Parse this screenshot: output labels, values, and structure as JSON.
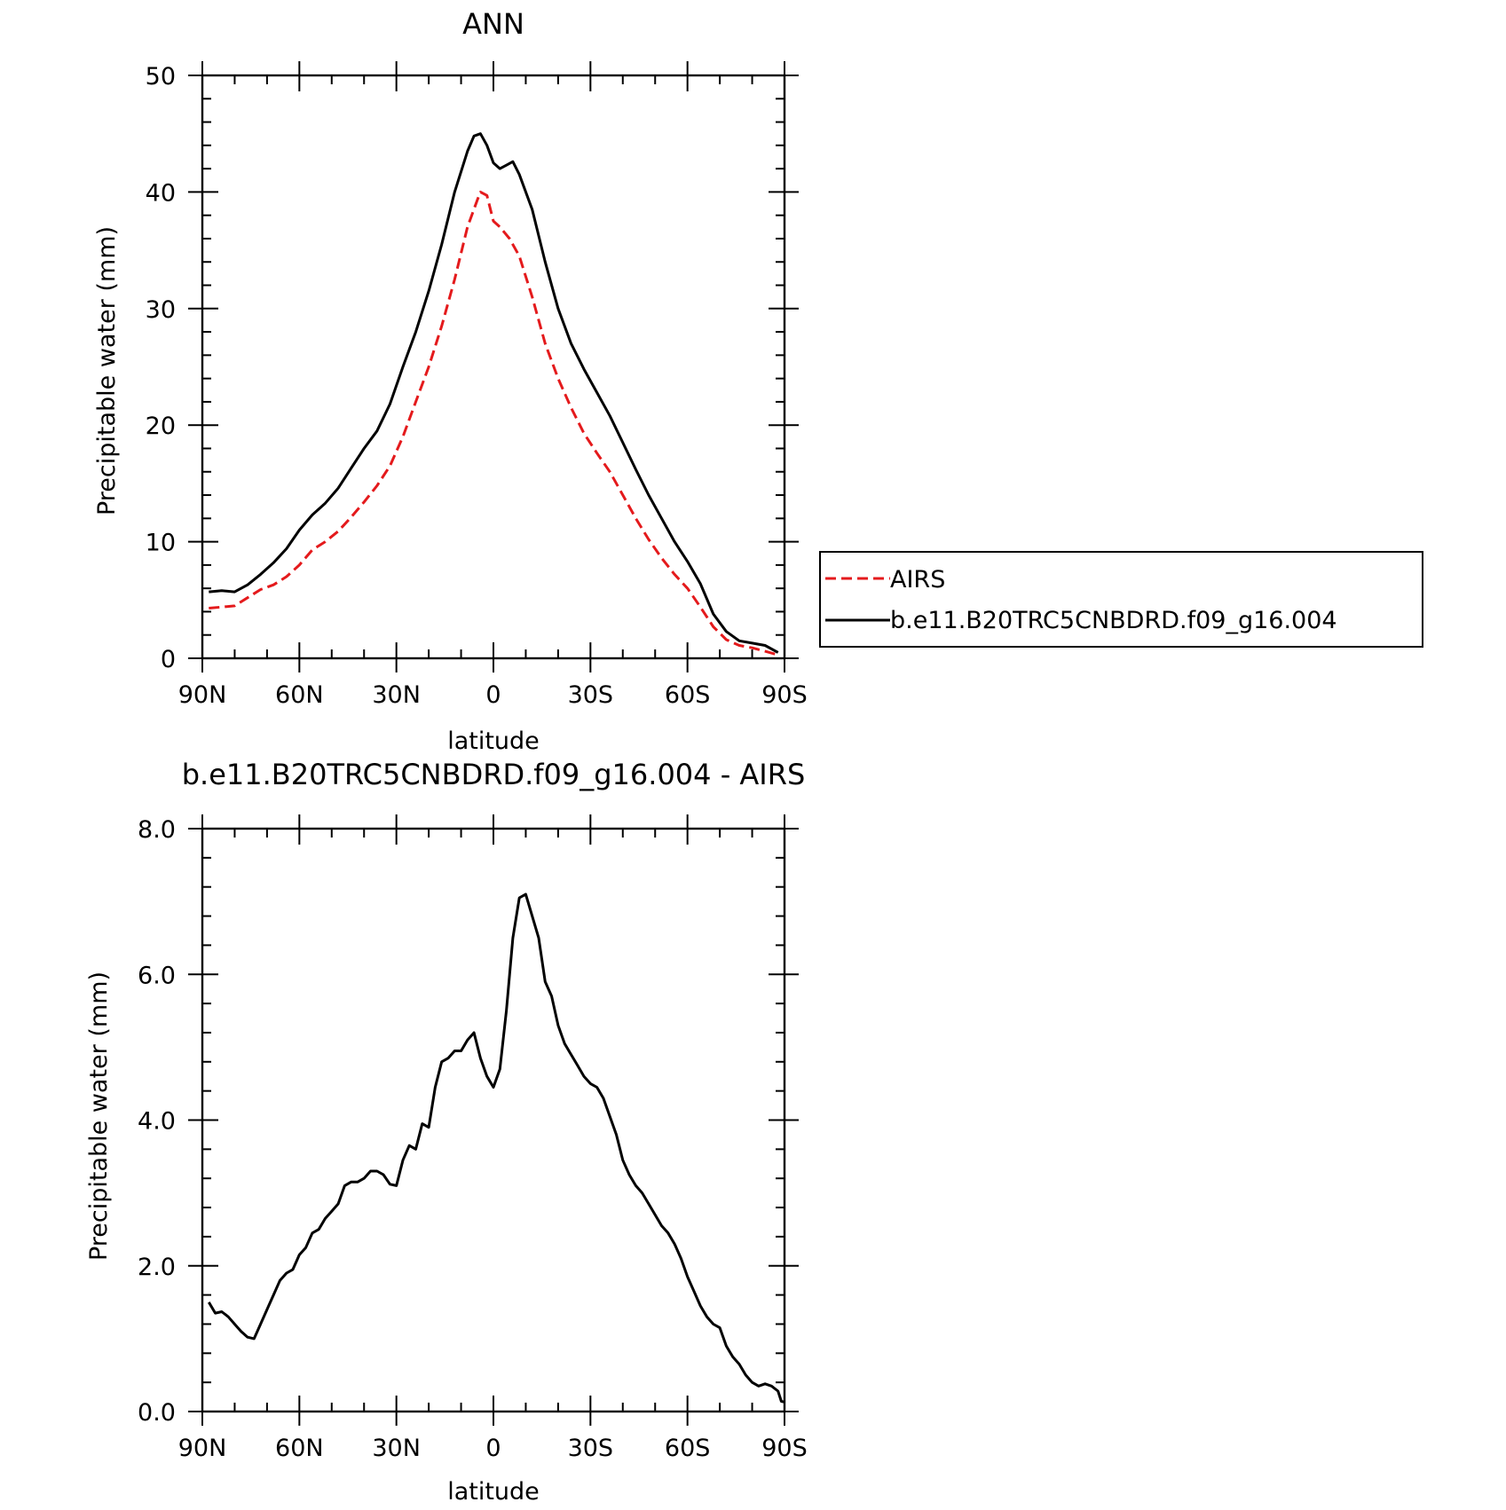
{
  "chart_data": [
    {
      "type": "line",
      "title": "ANN",
      "xlabel": "latitude",
      "ylabel": "Precipitable water (mm)",
      "xlim": [
        90,
        -90
      ],
      "ylim": [
        0,
        50
      ],
      "x_ticks": [
        90,
        60,
        30,
        0,
        -30,
        -60,
        -90
      ],
      "x_tick_labels": [
        "90N",
        "60N",
        "30N",
        "0",
        "30S",
        "60S",
        "90S"
      ],
      "y_ticks": [
        0,
        10,
        20,
        30,
        40,
        50
      ],
      "y_tick_labels": [
        "0",
        "10",
        "20",
        "30",
        "40",
        "50"
      ],
      "grid": false,
      "legend": "right",
      "series": [
        {
          "name": "AIRS",
          "color": "#e41a1c",
          "dash": "dashed",
          "points": [
            [
              88,
              4.3
            ],
            [
              84,
              4.4
            ],
            [
              80,
              4.5
            ],
            [
              76,
              5.2
            ],
            [
              72,
              5.9
            ],
            [
              68,
              6.3
            ],
            [
              64,
              7.0
            ],
            [
              60,
              8.0
            ],
            [
              56,
              9.3
            ],
            [
              52,
              10.0
            ],
            [
              48,
              10.9
            ],
            [
              44,
              12.1
            ],
            [
              40,
              13.4
            ],
            [
              36,
              14.8
            ],
            [
              32,
              16.5
            ],
            [
              28,
              19.0
            ],
            [
              24,
              22.0
            ],
            [
              20,
              25.0
            ],
            [
              16,
              28.5
            ],
            [
              12,
              32.5
            ],
            [
              8,
              37.0
            ],
            [
              5,
              39.3
            ],
            [
              4,
              40.0
            ],
            [
              2,
              39.7
            ],
            [
              0,
              37.5
            ],
            [
              -2,
              37.0
            ],
            [
              -5,
              36.0
            ],
            [
              -8,
              34.5
            ],
            [
              -12,
              31.0
            ],
            [
              -16,
              27.0
            ],
            [
              -20,
              24.0
            ],
            [
              -24,
              21.5
            ],
            [
              -28,
              19.3
            ],
            [
              -32,
              17.6
            ],
            [
              -36,
              16.0
            ],
            [
              -40,
              14.0
            ],
            [
              -44,
              12.0
            ],
            [
              -48,
              10.2
            ],
            [
              -52,
              8.6
            ],
            [
              -56,
              7.2
            ],
            [
              -60,
              6.0
            ],
            [
              -64,
              4.4
            ],
            [
              -68,
              2.7
            ],
            [
              -72,
              1.6
            ],
            [
              -76,
              1.1
            ],
            [
              -80,
              0.9
            ],
            [
              -84,
              0.6
            ],
            [
              -88,
              0.3
            ]
          ]
        },
        {
          "name": "b.e11.B20TRC5CNBDRD.f09_g16.004",
          "color": "#000000",
          "dash": "solid",
          "points": [
            [
              88,
              5.7
            ],
            [
              84,
              5.8
            ],
            [
              80,
              5.7
            ],
            [
              76,
              6.3
            ],
            [
              72,
              7.2
            ],
            [
              68,
              8.2
            ],
            [
              64,
              9.4
            ],
            [
              60,
              11.0
            ],
            [
              56,
              12.3
            ],
            [
              52,
              13.3
            ],
            [
              48,
              14.6
            ],
            [
              44,
              16.3
            ],
            [
              40,
              18.0
            ],
            [
              36,
              19.5
            ],
            [
              32,
              21.8
            ],
            [
              28,
              25.0
            ],
            [
              24,
              28.0
            ],
            [
              20,
              31.5
            ],
            [
              16,
              35.5
            ],
            [
              12,
              40.0
            ],
            [
              8,
              43.5
            ],
            [
              6,
              44.8
            ],
            [
              4,
              45.0
            ],
            [
              2,
              44.0
            ],
            [
              0,
              42.5
            ],
            [
              -2,
              42.0
            ],
            [
              -4,
              42.3
            ],
            [
              -6,
              42.6
            ],
            [
              -8,
              41.5
            ],
            [
              -12,
              38.5
            ],
            [
              -16,
              34.0
            ],
            [
              -20,
              30.0
            ],
            [
              -24,
              27.0
            ],
            [
              -28,
              24.8
            ],
            [
              -32,
              22.8
            ],
            [
              -36,
              20.8
            ],
            [
              -40,
              18.5
            ],
            [
              -44,
              16.2
            ],
            [
              -48,
              14.0
            ],
            [
              -52,
              12.0
            ],
            [
              -56,
              10.0
            ],
            [
              -60,
              8.3
            ],
            [
              -64,
              6.4
            ],
            [
              -68,
              3.8
            ],
            [
              -72,
              2.3
            ],
            [
              -76,
              1.5
            ],
            [
              -80,
              1.3
            ],
            [
              -84,
              1.1
            ],
            [
              -88,
              0.5
            ]
          ]
        }
      ]
    },
    {
      "type": "line",
      "title": "b.e11.B20TRC5CNBDRD.f09_g16.004 - AIRS",
      "xlabel": "latitude",
      "ylabel": "Precipitable water (mm)",
      "xlim": [
        90,
        -90
      ],
      "ylim": [
        0,
        8
      ],
      "x_ticks": [
        90,
        60,
        30,
        0,
        -30,
        -60,
        -90
      ],
      "x_tick_labels": [
        "90N",
        "60N",
        "30N",
        "0",
        "30S",
        "60S",
        "90S"
      ],
      "y_ticks": [
        0,
        2,
        4,
        6,
        8
      ],
      "y_tick_labels": [
        "0.0",
        "2.0",
        "4.0",
        "6.0",
        "8.0"
      ],
      "grid": false,
      "series": [
        {
          "color": "#000000",
          "dash": "solid",
          "points": [
            [
              88,
              1.5
            ],
            [
              86,
              1.35
            ],
            [
              84,
              1.37
            ],
            [
              82,
              1.3
            ],
            [
              80,
              1.2
            ],
            [
              78,
              1.1
            ],
            [
              76,
              1.02
            ],
            [
              74,
              1.0
            ],
            [
              72,
              1.2
            ],
            [
              70,
              1.4
            ],
            [
              68,
              1.6
            ],
            [
              66,
              1.8
            ],
            [
              64,
              1.9
            ],
            [
              62,
              1.95
            ],
            [
              60,
              2.15
            ],
            [
              58,
              2.25
            ],
            [
              56,
              2.45
            ],
            [
              54,
              2.5
            ],
            [
              52,
              2.65
            ],
            [
              50,
              2.75
            ],
            [
              48,
              2.85
            ],
            [
              46,
              3.1
            ],
            [
              44,
              3.15
            ],
            [
              42,
              3.15
            ],
            [
              40,
              3.2
            ],
            [
              38,
              3.3
            ],
            [
              36,
              3.3
            ],
            [
              34,
              3.25
            ],
            [
              32,
              3.12
            ],
            [
              30,
              3.1
            ],
            [
              28,
              3.45
            ],
            [
              26,
              3.65
            ],
            [
              24,
              3.6
            ],
            [
              22,
              3.95
            ],
            [
              20,
              3.9
            ],
            [
              18,
              4.45
            ],
            [
              16,
              4.8
            ],
            [
              14,
              4.85
            ],
            [
              12,
              4.95
            ],
            [
              10,
              4.95
            ],
            [
              8,
              5.1
            ],
            [
              6,
              5.2
            ],
            [
              4,
              4.85
            ],
            [
              2,
              4.6
            ],
            [
              0,
              4.45
            ],
            [
              -2,
              4.7
            ],
            [
              -4,
              5.5
            ],
            [
              -6,
              6.5
            ],
            [
              -8,
              7.05
            ],
            [
              -10,
              7.1
            ],
            [
              -12,
              6.8
            ],
            [
              -14,
              6.5
            ],
            [
              -16,
              5.9
            ],
            [
              -18,
              5.7
            ],
            [
              -20,
              5.3
            ],
            [
              -22,
              5.05
            ],
            [
              -24,
              4.9
            ],
            [
              -26,
              4.75
            ],
            [
              -28,
              4.6
            ],
            [
              -30,
              4.5
            ],
            [
              -32,
              4.45
            ],
            [
              -34,
              4.3
            ],
            [
              -36,
              4.05
            ],
            [
              -38,
              3.8
            ],
            [
              -40,
              3.45
            ],
            [
              -42,
              3.25
            ],
            [
              -44,
              3.1
            ],
            [
              -46,
              3.0
            ],
            [
              -48,
              2.85
            ],
            [
              -50,
              2.7
            ],
            [
              -52,
              2.55
            ],
            [
              -54,
              2.45
            ],
            [
              -56,
              2.3
            ],
            [
              -58,
              2.1
            ],
            [
              -60,
              1.85
            ],
            [
              -62,
              1.65
            ],
            [
              -64,
              1.45
            ],
            [
              -66,
              1.3
            ],
            [
              -68,
              1.2
            ],
            [
              -70,
              1.15
            ],
            [
              -72,
              0.9
            ],
            [
              -74,
              0.75
            ],
            [
              -76,
              0.65
            ],
            [
              -78,
              0.5
            ],
            [
              -80,
              0.4
            ],
            [
              -82,
              0.35
            ],
            [
              -84,
              0.38
            ],
            [
              -86,
              0.35
            ],
            [
              -88,
              0.28
            ],
            [
              -89,
              0.14
            ],
            [
              -90,
              0.13
            ]
          ]
        }
      ]
    }
  ]
}
